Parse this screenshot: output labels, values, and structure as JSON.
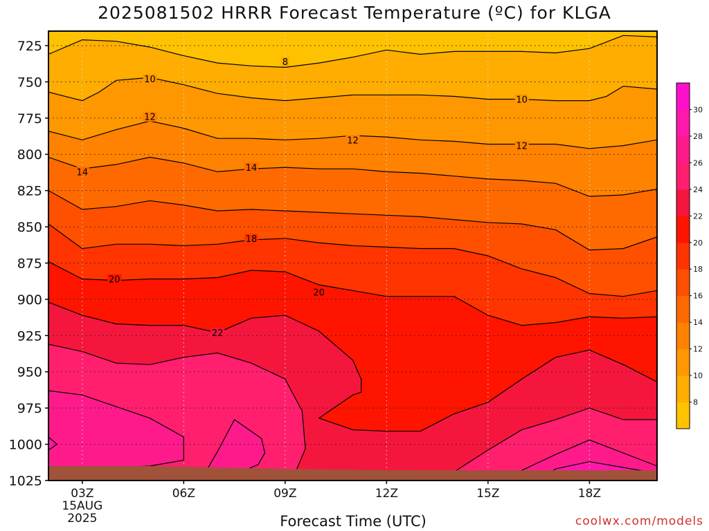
{
  "page": {
    "title": "2025081502 HRRR Forecast Temperature (ºC) for KLGA",
    "xlabel": "Forecast Time (UTC)",
    "credit": "coolwx.com/models"
  },
  "chart_data": {
    "type": "heatmap",
    "title": "2025081502 HRRR Forecast Temperature (ºC) for KLGA",
    "xlabel": "Forecast Time (UTC)",
    "ylabel": "",
    "x_range_hours": [
      2,
      20
    ],
    "y_range_hpa": [
      1025,
      715
    ],
    "y_ticks": [
      725,
      750,
      775,
      800,
      825,
      850,
      875,
      900,
      925,
      950,
      975,
      1000,
      1025
    ],
    "x_ticks": [
      {
        "hour": 3,
        "label": "03Z",
        "sublabels": [
          "15AUG",
          "2025"
        ]
      },
      {
        "hour": 6,
        "label": "06Z",
        "sublabels": []
      },
      {
        "hour": 9,
        "label": "09Z",
        "sublabels": []
      },
      {
        "hour": 12,
        "label": "12Z",
        "sublabels": []
      },
      {
        "hour": 15,
        "label": "15Z",
        "sublabels": []
      },
      {
        "hour": 18,
        "label": "18Z",
        "sublabels": []
      }
    ],
    "grid": true,
    "ground_color": "#a0523a",
    "colorbar": {
      "placement": "right",
      "levels": [
        6,
        8,
        10,
        12,
        14,
        16,
        18,
        20,
        22,
        24,
        26,
        28,
        30,
        32
      ],
      "labels": [
        8,
        10,
        12,
        14,
        16,
        18,
        20,
        22,
        24,
        26,
        28,
        30
      ],
      "colors": [
        "#ffc200",
        "#ffad00",
        "#ff9800",
        "#ff8200",
        "#ff6a00",
        "#ff5000",
        "#ff3400",
        "#ff1400",
        "#f5163e",
        "#ff1f6e",
        "#ff1a8c",
        "#ff19ab",
        "#ff0fcc"
      ]
    },
    "contour_labels": [
      {
        "value": "8",
        "hour": 9.0,
        "hpa": 736
      },
      {
        "value": "10",
        "hour": 5.0,
        "hpa": 748
      },
      {
        "value": "10",
        "hour": 16.0,
        "hpa": 762
      },
      {
        "value": "12",
        "hour": 5.0,
        "hpa": 774
      },
      {
        "value": "12",
        "hour": 11.0,
        "hpa": 790
      },
      {
        "value": "12",
        "hour": 16.0,
        "hpa": 794
      },
      {
        "value": "14",
        "hour": 3.0,
        "hpa": 812
      },
      {
        "value": "14",
        "hour": 8.0,
        "hpa": 809
      },
      {
        "value": "18",
        "hour": 8.0,
        "hpa": 858
      },
      {
        "value": "20",
        "hour": 3.95,
        "hpa": 886
      },
      {
        "value": "20",
        "hour": 10.0,
        "hpa": 895
      },
      {
        "value": "22",
        "hour": 7.0,
        "hpa": 923
      }
    ],
    "isotherms": [
      {
        "value": 8,
        "points": [
          [
            2,
            731
          ],
          [
            3,
            721
          ],
          [
            4,
            722
          ],
          [
            5,
            726
          ],
          [
            6,
            732
          ],
          [
            7,
            737
          ],
          [
            8,
            739
          ],
          [
            9,
            740
          ],
          [
            10,
            737
          ],
          [
            11,
            733
          ],
          [
            12,
            728
          ],
          [
            13,
            731
          ],
          [
            14,
            729
          ],
          [
            15,
            729
          ],
          [
            16,
            729
          ],
          [
            17,
            730
          ],
          [
            18,
            727
          ],
          [
            19,
            718
          ],
          [
            20,
            719
          ]
        ]
      },
      {
        "value": 10,
        "points": [
          [
            2,
            757
          ],
          [
            2.5,
            760
          ],
          [
            3,
            763
          ],
          [
            3.5,
            757
          ],
          [
            4,
            749
          ],
          [
            5,
            747
          ],
          [
            6,
            752
          ],
          [
            7,
            758
          ],
          [
            8,
            761
          ],
          [
            9,
            763
          ],
          [
            10,
            761
          ],
          [
            11,
            759
          ],
          [
            12,
            759
          ],
          [
            13,
            759
          ],
          [
            14,
            760
          ],
          [
            15,
            762
          ],
          [
            16,
            762
          ],
          [
            17,
            763
          ],
          [
            18,
            763
          ],
          [
            18.5,
            760
          ],
          [
            19,
            753
          ],
          [
            20,
            755
          ]
        ]
      },
      {
        "value": 12,
        "points": [
          [
            2,
            784
          ],
          [
            3,
            790
          ],
          [
            4,
            783
          ],
          [
            5,
            777
          ],
          [
            6,
            782
          ],
          [
            7,
            789
          ],
          [
            8,
            789
          ],
          [
            9,
            790
          ],
          [
            10,
            789
          ],
          [
            11,
            787
          ],
          [
            12,
            788
          ],
          [
            13,
            790
          ],
          [
            14,
            791
          ],
          [
            15,
            793
          ],
          [
            16,
            793
          ],
          [
            17,
            793
          ],
          [
            18,
            796
          ],
          [
            19,
            794
          ],
          [
            20,
            790
          ]
        ]
      },
      {
        "value": 14,
        "points": [
          [
            2,
            802
          ],
          [
            3,
            810
          ],
          [
            4,
            807
          ],
          [
            5,
            802
          ],
          [
            6,
            806
          ],
          [
            7,
            812
          ],
          [
            8,
            810
          ],
          [
            9,
            809
          ],
          [
            10,
            810
          ],
          [
            11,
            810
          ],
          [
            12,
            812
          ],
          [
            13,
            813
          ],
          [
            14,
            815
          ],
          [
            15,
            817
          ],
          [
            16,
            818
          ],
          [
            17,
            820
          ],
          [
            18,
            829
          ],
          [
            19,
            828
          ],
          [
            20,
            824
          ]
        ]
      },
      {
        "value": 16,
        "points": [
          [
            2,
            825
          ],
          [
            3,
            838
          ],
          [
            4,
            836
          ],
          [
            5,
            832
          ],
          [
            6,
            835
          ],
          [
            7,
            839
          ],
          [
            8,
            838
          ],
          [
            9,
            839
          ],
          [
            10,
            840
          ],
          [
            11,
            841
          ],
          [
            12,
            842
          ],
          [
            13,
            843
          ],
          [
            14,
            845
          ],
          [
            15,
            847
          ],
          [
            16,
            848
          ],
          [
            17,
            852
          ],
          [
            18,
            866
          ],
          [
            19,
            865
          ],
          [
            20,
            857
          ]
        ]
      },
      {
        "value": 18,
        "points": [
          [
            2,
            848
          ],
          [
            3,
            865
          ],
          [
            4,
            862
          ],
          [
            5,
            862
          ],
          [
            6,
            863
          ],
          [
            7,
            862
          ],
          [
            8,
            859
          ],
          [
            9,
            858
          ],
          [
            10,
            861
          ],
          [
            11,
            863
          ],
          [
            12,
            864
          ],
          [
            13,
            865
          ],
          [
            14,
            865
          ],
          [
            15,
            870
          ],
          [
            16,
            879
          ],
          [
            17,
            885
          ],
          [
            18,
            896
          ],
          [
            19,
            898
          ],
          [
            20,
            894
          ]
        ]
      },
      {
        "value": 20,
        "points": [
          [
            2,
            874
          ],
          [
            3,
            886
          ],
          [
            4,
            887
          ],
          [
            5,
            886
          ],
          [
            6,
            886
          ],
          [
            7,
            885
          ],
          [
            8,
            880
          ],
          [
            9,
            881
          ],
          [
            10,
            890
          ],
          [
            11,
            894
          ],
          [
            12,
            898
          ],
          [
            13,
            898
          ],
          [
            14,
            898
          ],
          [
            15,
            911
          ],
          [
            16,
            918
          ],
          [
            17,
            916
          ],
          [
            18,
            912
          ],
          [
            19,
            913
          ],
          [
            20,
            912
          ]
        ]
      },
      {
        "value": 22,
        "points": [
          [
            2,
            902
          ],
          [
            3,
            911
          ],
          [
            4,
            917
          ],
          [
            5,
            918
          ],
          [
            6,
            918
          ],
          [
            7,
            923
          ],
          [
            8,
            913
          ],
          [
            9,
            911
          ],
          [
            10,
            922
          ],
          [
            11,
            942
          ],
          [
            11.25,
            955
          ],
          [
            11.25,
            964
          ],
          [
            11,
            966
          ],
          [
            10,
            982
          ],
          [
            11,
            990
          ],
          [
            12,
            991
          ],
          [
            13,
            991
          ],
          [
            14,
            979
          ],
          [
            15,
            971
          ],
          [
            16,
            955
          ],
          [
            17,
            940
          ],
          [
            18,
            935
          ],
          [
            19,
            945
          ],
          [
            20,
            957
          ]
        ]
      },
      {
        "value": 24,
        "points": [
          [
            2,
            931
          ],
          [
            3,
            936
          ],
          [
            4,
            944
          ],
          [
            5,
            945
          ],
          [
            6,
            940
          ],
          [
            7,
            937
          ],
          [
            8,
            944
          ],
          [
            9,
            955
          ],
          [
            9.5,
            977
          ],
          [
            9.6,
            1003
          ],
          [
            9.2,
            1025
          ]
        ]
      },
      {
        "value": 24,
        "points": [
          [
            13.5,
            1025
          ],
          [
            14,
            1019
          ],
          [
            15,
            1004
          ],
          [
            16,
            990
          ],
          [
            17,
            983
          ],
          [
            18,
            975
          ],
          [
            19,
            983
          ],
          [
            20,
            983
          ]
        ]
      },
      {
        "value": 26,
        "points": [
          [
            2,
            963
          ],
          [
            3,
            966
          ],
          [
            4,
            974
          ],
          [
            5,
            982
          ],
          [
            6,
            995
          ],
          [
            6,
            1011
          ],
          [
            5,
            1015
          ],
          [
            4,
            1016
          ],
          [
            3,
            1017
          ],
          [
            2,
            1019
          ]
        ]
      },
      {
        "value": 26,
        "points": [
          [
            6.5,
            1025
          ],
          [
            7,
            1005
          ],
          [
            7.5,
            983
          ],
          [
            8.3,
            996
          ],
          [
            8.4,
            1006
          ],
          [
            8.2,
            1014
          ],
          [
            7.8,
            1018
          ],
          [
            7,
            1022
          ]
        ]
      },
      {
        "value": 26,
        "points": [
          [
            15.5,
            1025
          ],
          [
            16,
            1018
          ],
          [
            17,
            1007
          ],
          [
            18,
            997
          ],
          [
            19,
            1006
          ],
          [
            20,
            1015
          ]
        ]
      },
      {
        "value": 28,
        "points": [
          [
            2,
            995
          ],
          [
            2.25,
            1000
          ],
          [
            2,
            1004
          ]
        ]
      },
      {
        "value": 28,
        "points": [
          [
            16.5,
            1025
          ],
          [
            17,
            1017
          ],
          [
            18,
            1012
          ],
          [
            19,
            1016
          ],
          [
            20,
            1020
          ]
        ]
      }
    ],
    "ground_surface": [
      [
        2,
        1015
      ],
      [
        3,
        1015
      ],
      [
        5,
        1015
      ],
      [
        7,
        1016
      ],
      [
        9,
        1017
      ],
      [
        11,
        1017.5
      ],
      [
        13,
        1018
      ],
      [
        15,
        1018
      ],
      [
        17,
        1018
      ],
      [
        20,
        1018
      ]
    ]
  }
}
